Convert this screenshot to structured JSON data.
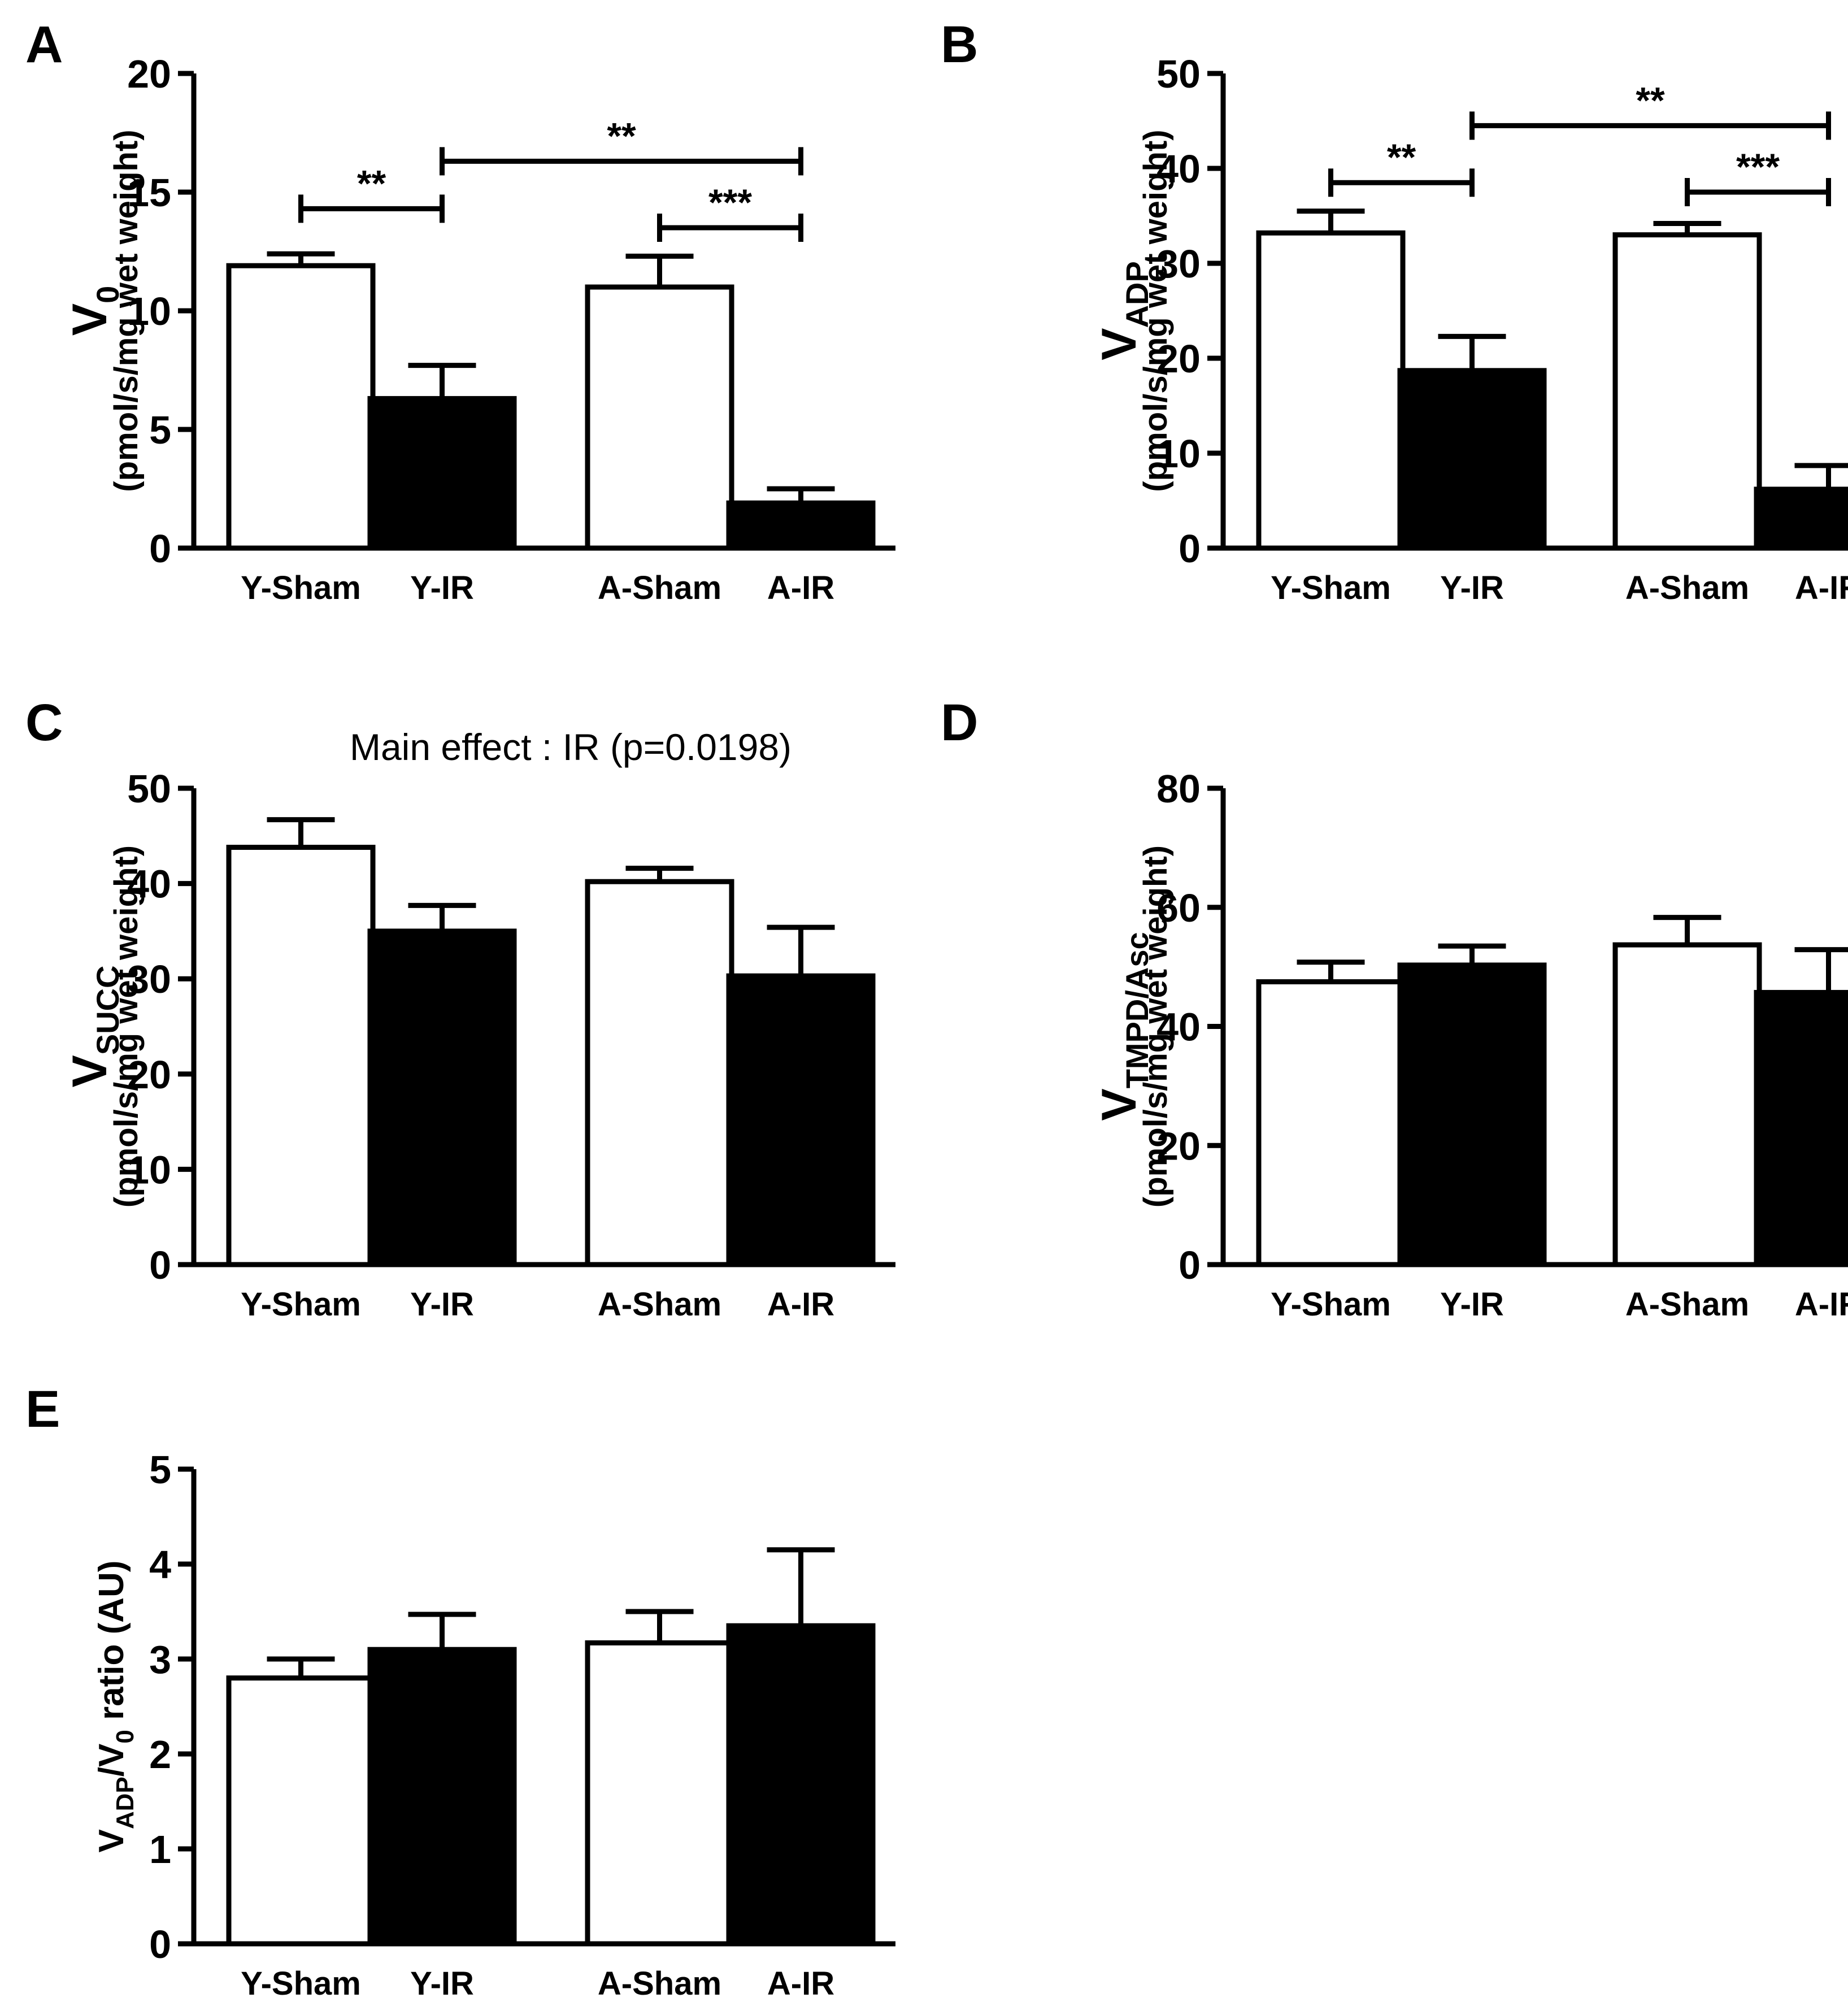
{
  "chart_data": [
    {
      "panel": "A",
      "type": "bar",
      "subtitle": "",
      "categories": [
        "Y-Sham",
        "Y-IR",
        "A-Sham",
        "A-IR"
      ],
      "values": [
        11.9,
        6.3,
        11.0,
        1.9
      ],
      "errors": [
        0.5,
        1.4,
        1.3,
        0.6
      ],
      "fills": [
        "#ffffff",
        "#000000",
        "#ffffff",
        "#000000"
      ],
      "ylabel_main": "V",
      "ylabel_sub": "0",
      "ylabel_units": "(pmol/s/mg wet weight)",
      "ylim": [
        0,
        20
      ],
      "yticks": [
        0,
        5,
        10,
        15,
        20
      ],
      "significance": [
        {
          "from": 0,
          "to": 1,
          "y": 14.3,
          "label": "**"
        },
        {
          "from": 1,
          "to": 3,
          "y": 16.3,
          "label": "**"
        },
        {
          "from": 2,
          "to": 3,
          "y": 13.5,
          "label": "***"
        }
      ]
    },
    {
      "panel": "B",
      "type": "bar",
      "subtitle": "",
      "categories": [
        "Y-Sham",
        "Y-IR",
        "A-Sham",
        "A-IR"
      ],
      "values": [
        33.2,
        18.7,
        33.0,
        6.2
      ],
      "errors": [
        2.3,
        3.6,
        1.2,
        2.5
      ],
      "fills": [
        "#ffffff",
        "#000000",
        "#ffffff",
        "#000000"
      ],
      "ylabel_main": "V",
      "ylabel_sub": "ADP",
      "ylabel_units": "(pmol/s/mg wet weight)",
      "ylim": [
        0,
        50
      ],
      "yticks": [
        0,
        10,
        20,
        30,
        40,
        50
      ],
      "significance": [
        {
          "from": 0,
          "to": 1,
          "y": 38.5,
          "label": "**"
        },
        {
          "from": 1,
          "to": 3,
          "y": 44.5,
          "label": "**"
        },
        {
          "from": 2,
          "to": 3,
          "y": 37.5,
          "label": "***"
        }
      ]
    },
    {
      "panel": "C",
      "type": "bar",
      "subtitle": "Main effect : IR (p=0.0198)",
      "categories": [
        "Y-Sham",
        "Y-IR",
        "A-Sham",
        "A-IR"
      ],
      "values": [
        43.8,
        35.0,
        40.2,
        30.3
      ],
      "errors": [
        2.9,
        2.7,
        1.4,
        5.1
      ],
      "fills": [
        "#ffffff",
        "#000000",
        "#ffffff",
        "#000000"
      ],
      "ylabel_main": "V",
      "ylabel_sub": "SUCC",
      "ylabel_units": "(pmol/s/mg wet weight)",
      "ylim": [
        0,
        50
      ],
      "yticks": [
        0,
        10,
        20,
        30,
        40,
        50
      ],
      "significance": []
    },
    {
      "panel": "D",
      "type": "bar",
      "subtitle": "",
      "categories": [
        "Y-Sham",
        "Y-IR",
        "A-Sham",
        "A-IR"
      ],
      "values": [
        47.5,
        50.3,
        53.7,
        45.7
      ],
      "errors": [
        3.3,
        3.2,
        4.6,
        7.2
      ],
      "fills": [
        "#ffffff",
        "#000000",
        "#ffffff",
        "#000000"
      ],
      "ylabel_main": "V",
      "ylabel_sub": "TMPD/Asc",
      "ylabel_units": "(pmol/s/mg wet weight)",
      "ylim": [
        0,
        80
      ],
      "yticks": [
        0,
        20,
        40,
        60,
        80
      ],
      "significance": []
    },
    {
      "panel": "E",
      "type": "bar",
      "subtitle": "",
      "categories": [
        "Y-Sham",
        "Y-IR",
        "A-Sham",
        "A-IR"
      ],
      "values": [
        2.8,
        3.1,
        3.17,
        3.35
      ],
      "errors": [
        0.2,
        0.37,
        0.33,
        0.8
      ],
      "fills": [
        "#ffffff",
        "#000000",
        "#ffffff",
        "#000000"
      ],
      "ylabel_main": "V",
      "ylabel_sub": "ADP",
      "ylabel_mid": "/V",
      "ylabel_sub2": "0",
      "ylabel_tail": " ratio (AU)",
      "ylim": [
        0,
        5
      ],
      "yticks": [
        0,
        1,
        2,
        3,
        4,
        5
      ],
      "significance": []
    }
  ]
}
